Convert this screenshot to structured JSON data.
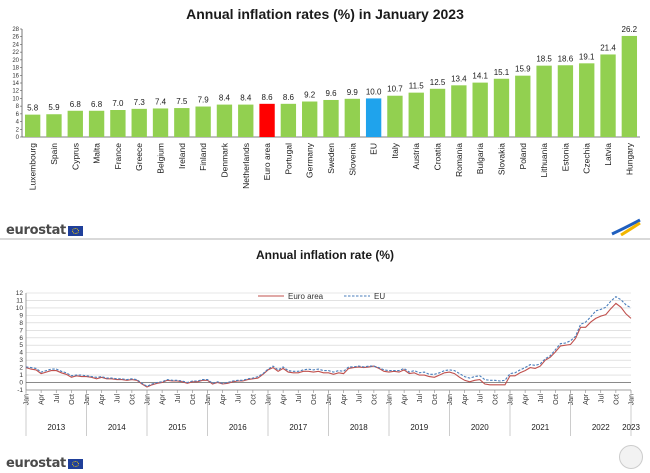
{
  "chart_data": [
    {
      "type": "bar",
      "title": "Annual inflation rates (%) in January 2023",
      "categories": [
        "Luxembourg",
        "Spain",
        "Cyprus",
        "Malta",
        "France",
        "Greece",
        "Belgium",
        "Ireland",
        "Finland",
        "Denmark",
        "Netherlands",
        "Euro area",
        "Portugal",
        "Germany",
        "Sweden",
        "Slovenia",
        "EU",
        "Italy",
        "Austria",
        "Croatia",
        "Romania",
        "Bulgaria",
        "Slovakia",
        "Poland",
        "Lithuania",
        "Estonia",
        "Czechia",
        "Latvia",
        "Hungary"
      ],
      "values": [
        5.8,
        5.9,
        6.8,
        6.8,
        7.0,
        7.3,
        7.4,
        7.5,
        7.9,
        8.4,
        8.4,
        8.6,
        8.6,
        9.2,
        9.6,
        9.9,
        10.0,
        10.7,
        11.5,
        12.5,
        13.4,
        14.1,
        15.1,
        15.9,
        18.5,
        18.6,
        19.1,
        21.4,
        26.2
      ],
      "value_labels": [
        "5.8",
        "5.9",
        "6.8",
        "6.8",
        "7.0",
        "7.3",
        "7.4",
        "7.5",
        "7.9",
        "8.4",
        "8.4",
        "8.6",
        "8.6",
        "9.2",
        "9.6",
        "9.9",
        "10.0",
        "10.7",
        "11.5",
        "12.5",
        "13.4",
        "14.1",
        "15.1",
        "15.9",
        "18.5",
        "18.6",
        "19.1",
        "21.4",
        "26.2"
      ],
      "highlight": {
        "Euro area": "#ff0000",
        "EU": "#1fa3ec"
      },
      "bar_color": "#92d050",
      "yticks": [
        0,
        2,
        4,
        6,
        8,
        10,
        12,
        14,
        16,
        18,
        20,
        22,
        24,
        26,
        28
      ],
      "ylim": [
        0,
        28
      ]
    },
    {
      "type": "line",
      "title": "Annual inflation rate (%)",
      "years": [
        "2013",
        "2014",
        "2015",
        "2016",
        "2017",
        "2018",
        "2019",
        "2020",
        "2021",
        "2022",
        "2023"
      ],
      "month_ticks": [
        "Jan",
        "Apr",
        "Jul",
        "Oct"
      ],
      "last_tick": "Jan",
      "yticks": [
        -1,
        0,
        1,
        2,
        3,
        4,
        5,
        6,
        7,
        8,
        9,
        10,
        11,
        12
      ],
      "ylim": [
        -1,
        12
      ],
      "series": [
        {
          "name": "Euro area",
          "color": "#c0504d",
          "dash": "solid",
          "values": [
            2.0,
            1.8,
            1.7,
            1.2,
            1.4,
            1.6,
            1.6,
            1.3,
            1.1,
            0.7,
            0.9,
            0.8,
            0.8,
            0.7,
            0.5,
            0.7,
            0.5,
            0.5,
            0.4,
            0.4,
            0.3,
            0.4,
            0.3,
            -0.2,
            -0.6,
            -0.3,
            -0.1,
            0.0,
            0.3,
            0.2,
            0.2,
            0.1,
            -0.1,
            0.1,
            0.1,
            0.3,
            0.3,
            -0.2,
            0.0,
            -0.2,
            -0.1,
            0.1,
            0.2,
            0.2,
            0.4,
            0.5,
            0.6,
            1.1,
            1.7,
            2.0,
            1.5,
            1.9,
            1.4,
            1.3,
            1.3,
            1.5,
            1.5,
            1.4,
            1.5,
            1.3,
            1.3,
            1.1,
            1.3,
            1.2,
            1.9,
            2.0,
            2.1,
            2.0,
            2.1,
            2.2,
            1.9,
            1.5,
            1.4,
            1.5,
            1.4,
            1.7,
            1.2,
            1.3,
            1.0,
            1.0,
            0.8,
            0.7,
            1.0,
            1.3,
            1.4,
            1.2,
            0.7,
            0.3,
            0.1,
            0.3,
            0.4,
            -0.2,
            -0.3,
            -0.3,
            -0.3,
            -0.3,
            0.9,
            0.9,
            1.3,
            1.6,
            2.0,
            1.9,
            2.2,
            3.0,
            3.4,
            4.1,
            4.9,
            5.0,
            5.1,
            5.9,
            7.4,
            7.4,
            8.1,
            8.6,
            8.9,
            9.1,
            9.9,
            10.6,
            10.1,
            9.2,
            8.6
          ]
        },
        {
          "name": "EU",
          "color": "#4a7ebb",
          "dash": "dashed",
          "values": [
            2.1,
            2.0,
            1.9,
            1.4,
            1.6,
            1.8,
            1.8,
            1.5,
            1.3,
            0.9,
            1.0,
            1.0,
            0.9,
            0.8,
            0.7,
            0.8,
            0.6,
            0.6,
            0.5,
            0.5,
            0.4,
            0.5,
            0.4,
            -0.1,
            -0.5,
            -0.2,
            0.0,
            0.1,
            0.4,
            0.3,
            0.3,
            0.2,
            0.0,
            0.2,
            0.2,
            0.4,
            0.4,
            -0.1,
            0.1,
            -0.1,
            0.0,
            0.2,
            0.3,
            0.3,
            0.5,
            0.6,
            0.8,
            1.2,
            1.8,
            2.2,
            1.7,
            2.1,
            1.6,
            1.5,
            1.5,
            1.7,
            1.8,
            1.7,
            1.8,
            1.6,
            1.6,
            1.4,
            1.6,
            1.5,
            2.1,
            2.1,
            2.2,
            2.1,
            2.2,
            2.2,
            2.0,
            1.7,
            1.6,
            1.6,
            1.6,
            1.9,
            1.4,
            1.6,
            1.3,
            1.4,
            1.1,
            1.1,
            1.3,
            1.6,
            1.7,
            1.6,
            1.2,
            0.8,
            0.6,
            0.8,
            0.9,
            0.4,
            0.3,
            0.3,
            0.2,
            0.3,
            1.2,
            1.3,
            1.7,
            2.0,
            2.4,
            2.3,
            2.5,
            3.2,
            3.6,
            4.4,
            5.2,
            5.3,
            5.6,
            6.2,
            7.8,
            8.1,
            8.8,
            9.6,
            9.8,
            10.1,
            10.9,
            11.5,
            11.1,
            10.4,
            10.0
          ]
        }
      ]
    }
  ],
  "branding": {
    "logo_text": "eurostat"
  }
}
